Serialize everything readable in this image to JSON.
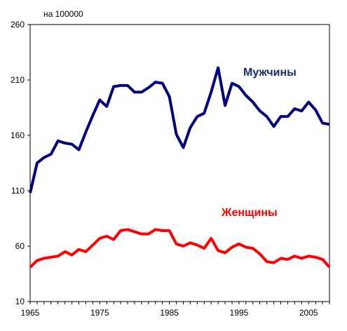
{
  "chart_data": {
    "type": "line",
    "unit_label": "на 100000",
    "x": [
      1965,
      1966,
      1967,
      1968,
      1969,
      1970,
      1971,
      1972,
      1973,
      1974,
      1975,
      1976,
      1977,
      1978,
      1979,
      1980,
      1981,
      1982,
      1983,
      1984,
      1985,
      1986,
      1987,
      1988,
      1989,
      1990,
      1991,
      1992,
      1993,
      1994,
      1995,
      1996,
      1997,
      1998,
      1999,
      2000,
      2001,
      2002,
      2003,
      2004,
      2005,
      2006,
      2007,
      2008
    ],
    "xlim": [
      1965,
      2008
    ],
    "xticks": [
      1965,
      1975,
      1985,
      1995,
      2005
    ],
    "ylim": [
      10,
      260
    ],
    "yticks": [
      10,
      60,
      110,
      160,
      210,
      260
    ],
    "grid": false,
    "series": [
      {
        "name": "Мужчины",
        "color": "#000080",
        "values": [
          108,
          135,
          140,
          143,
          155,
          153,
          152,
          147,
          163,
          178,
          192,
          186,
          204,
          205,
          205,
          199,
          199,
          203,
          208,
          207,
          195,
          161,
          149,
          167,
          177,
          180,
          199,
          221,
          187,
          207,
          204,
          196,
          190,
          182,
          177,
          168,
          177,
          177,
          184,
          182,
          190,
          183,
          171,
          170
        ]
      },
      {
        "name": "Женщины",
        "color": "#ff0000",
        "values": [
          41,
          47,
          49,
          50,
          51,
          55,
          52,
          57,
          55,
          61,
          67,
          69,
          66,
          74,
          75,
          73,
          71,
          71,
          75,
          74,
          74,
          62,
          60,
          63,
          61,
          58,
          67,
          56,
          54,
          59,
          62,
          59,
          58,
          53,
          46,
          45,
          49,
          48,
          51,
          49,
          51,
          50,
          48,
          41
        ]
      }
    ]
  }
}
